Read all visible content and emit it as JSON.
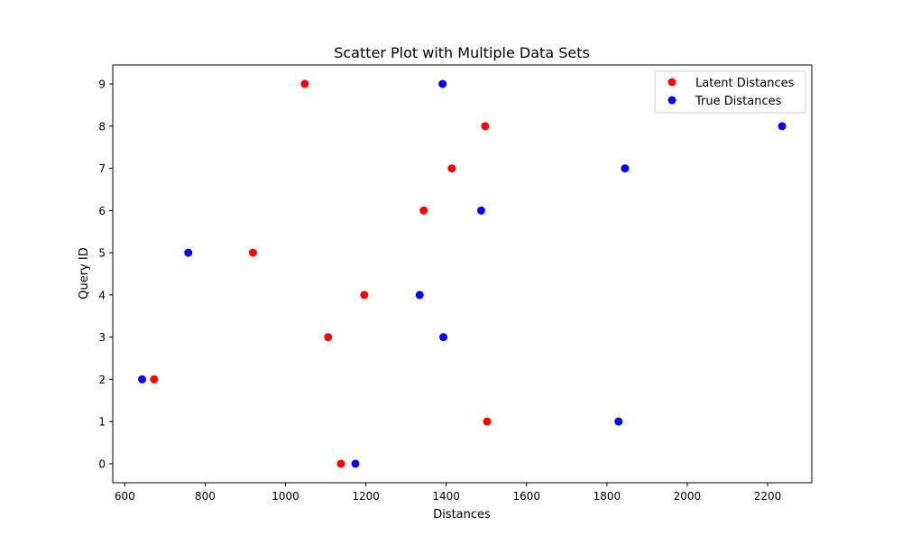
{
  "chart_data": {
    "type": "scatter",
    "title": "Scatter Plot with Multiple Data Sets",
    "xlabel": "Distances",
    "ylabel": "Query ID",
    "xlim": [
      570,
      2310
    ],
    "ylim": [
      -0.45,
      9.45
    ],
    "xticks": [
      600,
      800,
      1000,
      1200,
      1400,
      1600,
      1800,
      2000,
      2200
    ],
    "yticks": [
      0,
      1,
      2,
      3,
      4,
      5,
      6,
      7,
      8,
      9
    ],
    "grid": false,
    "legend_position": "top-right",
    "series": [
      {
        "name": "Latent Distances",
        "color": "#ff0000",
        "points": [
          {
            "x": 1138,
            "y": 0
          },
          {
            "x": 1502,
            "y": 1
          },
          {
            "x": 673,
            "y": 2
          },
          {
            "x": 1106,
            "y": 3
          },
          {
            "x": 1196,
            "y": 4
          },
          {
            "x": 919,
            "y": 5
          },
          {
            "x": 1344,
            "y": 6
          },
          {
            "x": 1414,
            "y": 7
          },
          {
            "x": 1497,
            "y": 8
          },
          {
            "x": 1048,
            "y": 9
          }
        ]
      },
      {
        "name": "True Distances",
        "color": "#0000ff",
        "points": [
          {
            "x": 1174,
            "y": 0
          },
          {
            "x": 1829,
            "y": 1
          },
          {
            "x": 643,
            "y": 2
          },
          {
            "x": 1393,
            "y": 3
          },
          {
            "x": 1334,
            "y": 4
          },
          {
            "x": 758,
            "y": 5
          },
          {
            "x": 1487,
            "y": 6
          },
          {
            "x": 1845,
            "y": 7
          },
          {
            "x": 2236,
            "y": 8
          },
          {
            "x": 1391,
            "y": 9
          }
        ]
      }
    ]
  }
}
